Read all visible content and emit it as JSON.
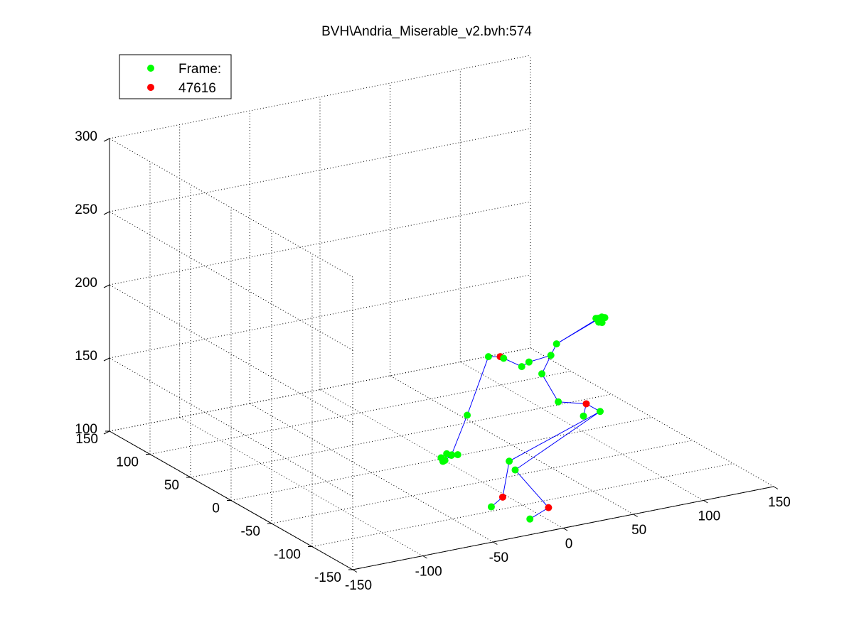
{
  "chart_data": {
    "type": "scatter",
    "title": "BVH\\Andria_Miserable_v2.bvh:574",
    "grid": true,
    "legend_position": "top-left",
    "legend": [
      {
        "label": "Frame:",
        "color": "#00ff00"
      },
      {
        "label": "47616",
        "color": "#ff0000"
      }
    ],
    "axes": {
      "x": {
        "ticks": [
          -150,
          -100,
          -50,
          0,
          50,
          100,
          150
        ],
        "lim": [
          -150,
          150
        ]
      },
      "y": {
        "ticks": [
          -150,
          -100,
          -50,
          0,
          50,
          100,
          150
        ],
        "lim": [
          -150,
          150
        ]
      },
      "z": {
        "ticks": [
          100,
          150,
          200,
          250,
          300
        ],
        "lim": [
          100,
          300
        ]
      }
    },
    "colors": {
      "joint": "#00ff00",
      "key_joint": "#ff0000",
      "bone": "#0000ff"
    },
    "points": [
      {
        "id": "head_a",
        "x": 147,
        "y": 61,
        "z": 149,
        "key": false
      },
      {
        "id": "head_b",
        "x": 147,
        "y": 64,
        "z": 148,
        "key": false
      },
      {
        "id": "head_c",
        "x": 150,
        "y": 62,
        "z": 149,
        "key": false
      },
      {
        "id": "head_d",
        "x": 149,
        "y": 60,
        "z": 146,
        "key": false
      },
      {
        "id": "head_e",
        "x": 151,
        "y": 60,
        "z": 149,
        "key": false
      },
      {
        "id": "head_f",
        "x": 149,
        "y": 64,
        "z": 145,
        "key": false
      },
      {
        "id": "neck",
        "x": 116,
        "y": 59,
        "z": 138,
        "key": false
      },
      {
        "id": "spine_top",
        "x": 101,
        "y": 40,
        "z": 139,
        "key": false
      },
      {
        "id": "spine_mid",
        "x": 94,
        "y": 39,
        "z": 128,
        "key": false
      },
      {
        "id": "spine_low",
        "x": 93,
        "y": 17,
        "z": 116,
        "key": false
      },
      {
        "id": "hip_l",
        "x": 104,
        "y": 5,
        "z": 108,
        "key": false
      },
      {
        "id": "hip_c",
        "x": 106,
        "y": 5,
        "z": 116,
        "key": true
      },
      {
        "id": "hip_r",
        "x": 113,
        "y": 0,
        "z": 111,
        "key": false
      },
      {
        "id": "knee_l",
        "x": 69,
        "y": 36,
        "z": 74,
        "key": false
      },
      {
        "id": "ankle_l",
        "x": 58,
        "y": 25,
        "z": 55,
        "key": true
      },
      {
        "id": "toe_l",
        "x": 47,
        "y": 20,
        "z": 52,
        "key": false
      },
      {
        "id": "knee_r",
        "x": 64,
        "y": 20,
        "z": 74,
        "key": false
      },
      {
        "id": "ankle_r",
        "x": 82,
        "y": 10,
        "z": 48,
        "key": true
      },
      {
        "id": "toe_r",
        "x": 67,
        "y": 7,
        "z": 44,
        "key": false
      },
      {
        "id": "clav_a",
        "x": 90,
        "y": 48,
        "z": 134,
        "key": false
      },
      {
        "id": "clav_b",
        "x": 86,
        "y": 50,
        "z": 131,
        "key": false
      },
      {
        "id": "shoulder_l",
        "x": 64,
        "y": 53,
        "z": 141,
        "key": false
      },
      {
        "id": "shoulder_key",
        "x": 73,
        "y": 54,
        "z": 139,
        "key": true
      },
      {
        "id": "upper_arm",
        "x": 76,
        "y": 55,
        "z": 137,
        "key": false
      },
      {
        "id": "elbow_l",
        "x": 46,
        "y": 48,
        "z": 106,
        "key": false
      },
      {
        "id": "wrist_a",
        "x": 37,
        "y": 52,
        "z": 79,
        "key": false
      },
      {
        "id": "hand_a",
        "x": 31,
        "y": 52,
        "z": 76,
        "key": false
      },
      {
        "id": "hand_b",
        "x": 32,
        "y": 56,
        "z": 77,
        "key": false
      },
      {
        "id": "hand_c",
        "x": 33,
        "y": 53,
        "z": 76,
        "key": false
      },
      {
        "id": "hand_d",
        "x": 36,
        "y": 56,
        "z": 79,
        "key": false
      },
      {
        "id": "hand_e",
        "x": 39,
        "y": 55,
        "z": 78,
        "key": false
      },
      {
        "id": "hand_f",
        "x": 41,
        "y": 51,
        "z": 79,
        "key": false
      }
    ],
    "bones": [
      [
        "head_a",
        "neck"
      ],
      [
        "head_c",
        "neck"
      ],
      [
        "neck",
        "spine_top"
      ],
      [
        "spine_top",
        "spine_mid"
      ],
      [
        "spine_mid",
        "spine_low"
      ],
      [
        "spine_low",
        "hip_c"
      ],
      [
        "hip_c",
        "hip_r"
      ],
      [
        "hip_c",
        "hip_l"
      ],
      [
        "hip_r",
        "knee_l"
      ],
      [
        "knee_l",
        "ankle_l"
      ],
      [
        "ankle_l",
        "toe_l"
      ],
      [
        "hip_r",
        "knee_r"
      ],
      [
        "knee_r",
        "ankle_r"
      ],
      [
        "ankle_r",
        "toe_r"
      ],
      [
        "spine_top",
        "clav_a"
      ],
      [
        "clav_a",
        "clav_b"
      ],
      [
        "clav_b",
        "upper_arm"
      ],
      [
        "upper_arm",
        "shoulder_key"
      ],
      [
        "shoulder_key",
        "shoulder_l"
      ],
      [
        "shoulder_l",
        "elbow_l"
      ],
      [
        "elbow_l",
        "wrist_a"
      ],
      [
        "wrist_a",
        "hand_c"
      ]
    ]
  }
}
